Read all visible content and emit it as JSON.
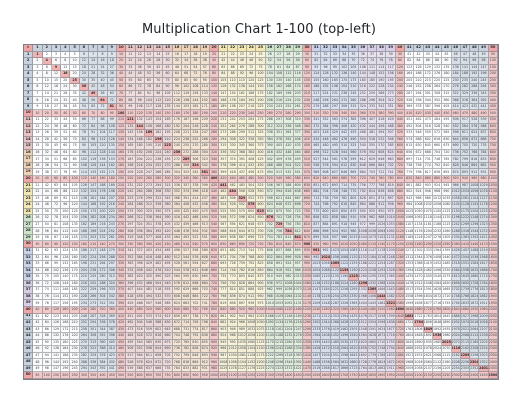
{
  "title": "Multiplication Chart 1-100 (top-left)",
  "chart": {
    "corner_label": "×",
    "row_start": 1,
    "row_end": 50,
    "col_start": 1,
    "col_end": 50,
    "cell_rule": "row × column"
  },
  "palette": {
    "head": [
      "#c9d2dc",
      "#c9d2dc",
      "#e6c4c4",
      "#eed2b8",
      "#f3e8b4",
      "#cfe3c8",
      "#c9d2e6",
      "#d8cfe4"
    ],
    "body": [
      "#ffffff",
      "#dde3ea",
      "#f1dede",
      "#f5e6d6",
      "#f8f3d9",
      "#e4efdf",
      "#dde3f0",
      "#e8e2ef"
    ],
    "highlight": "#eea7a7",
    "grid_line": "#8a9099"
  }
}
